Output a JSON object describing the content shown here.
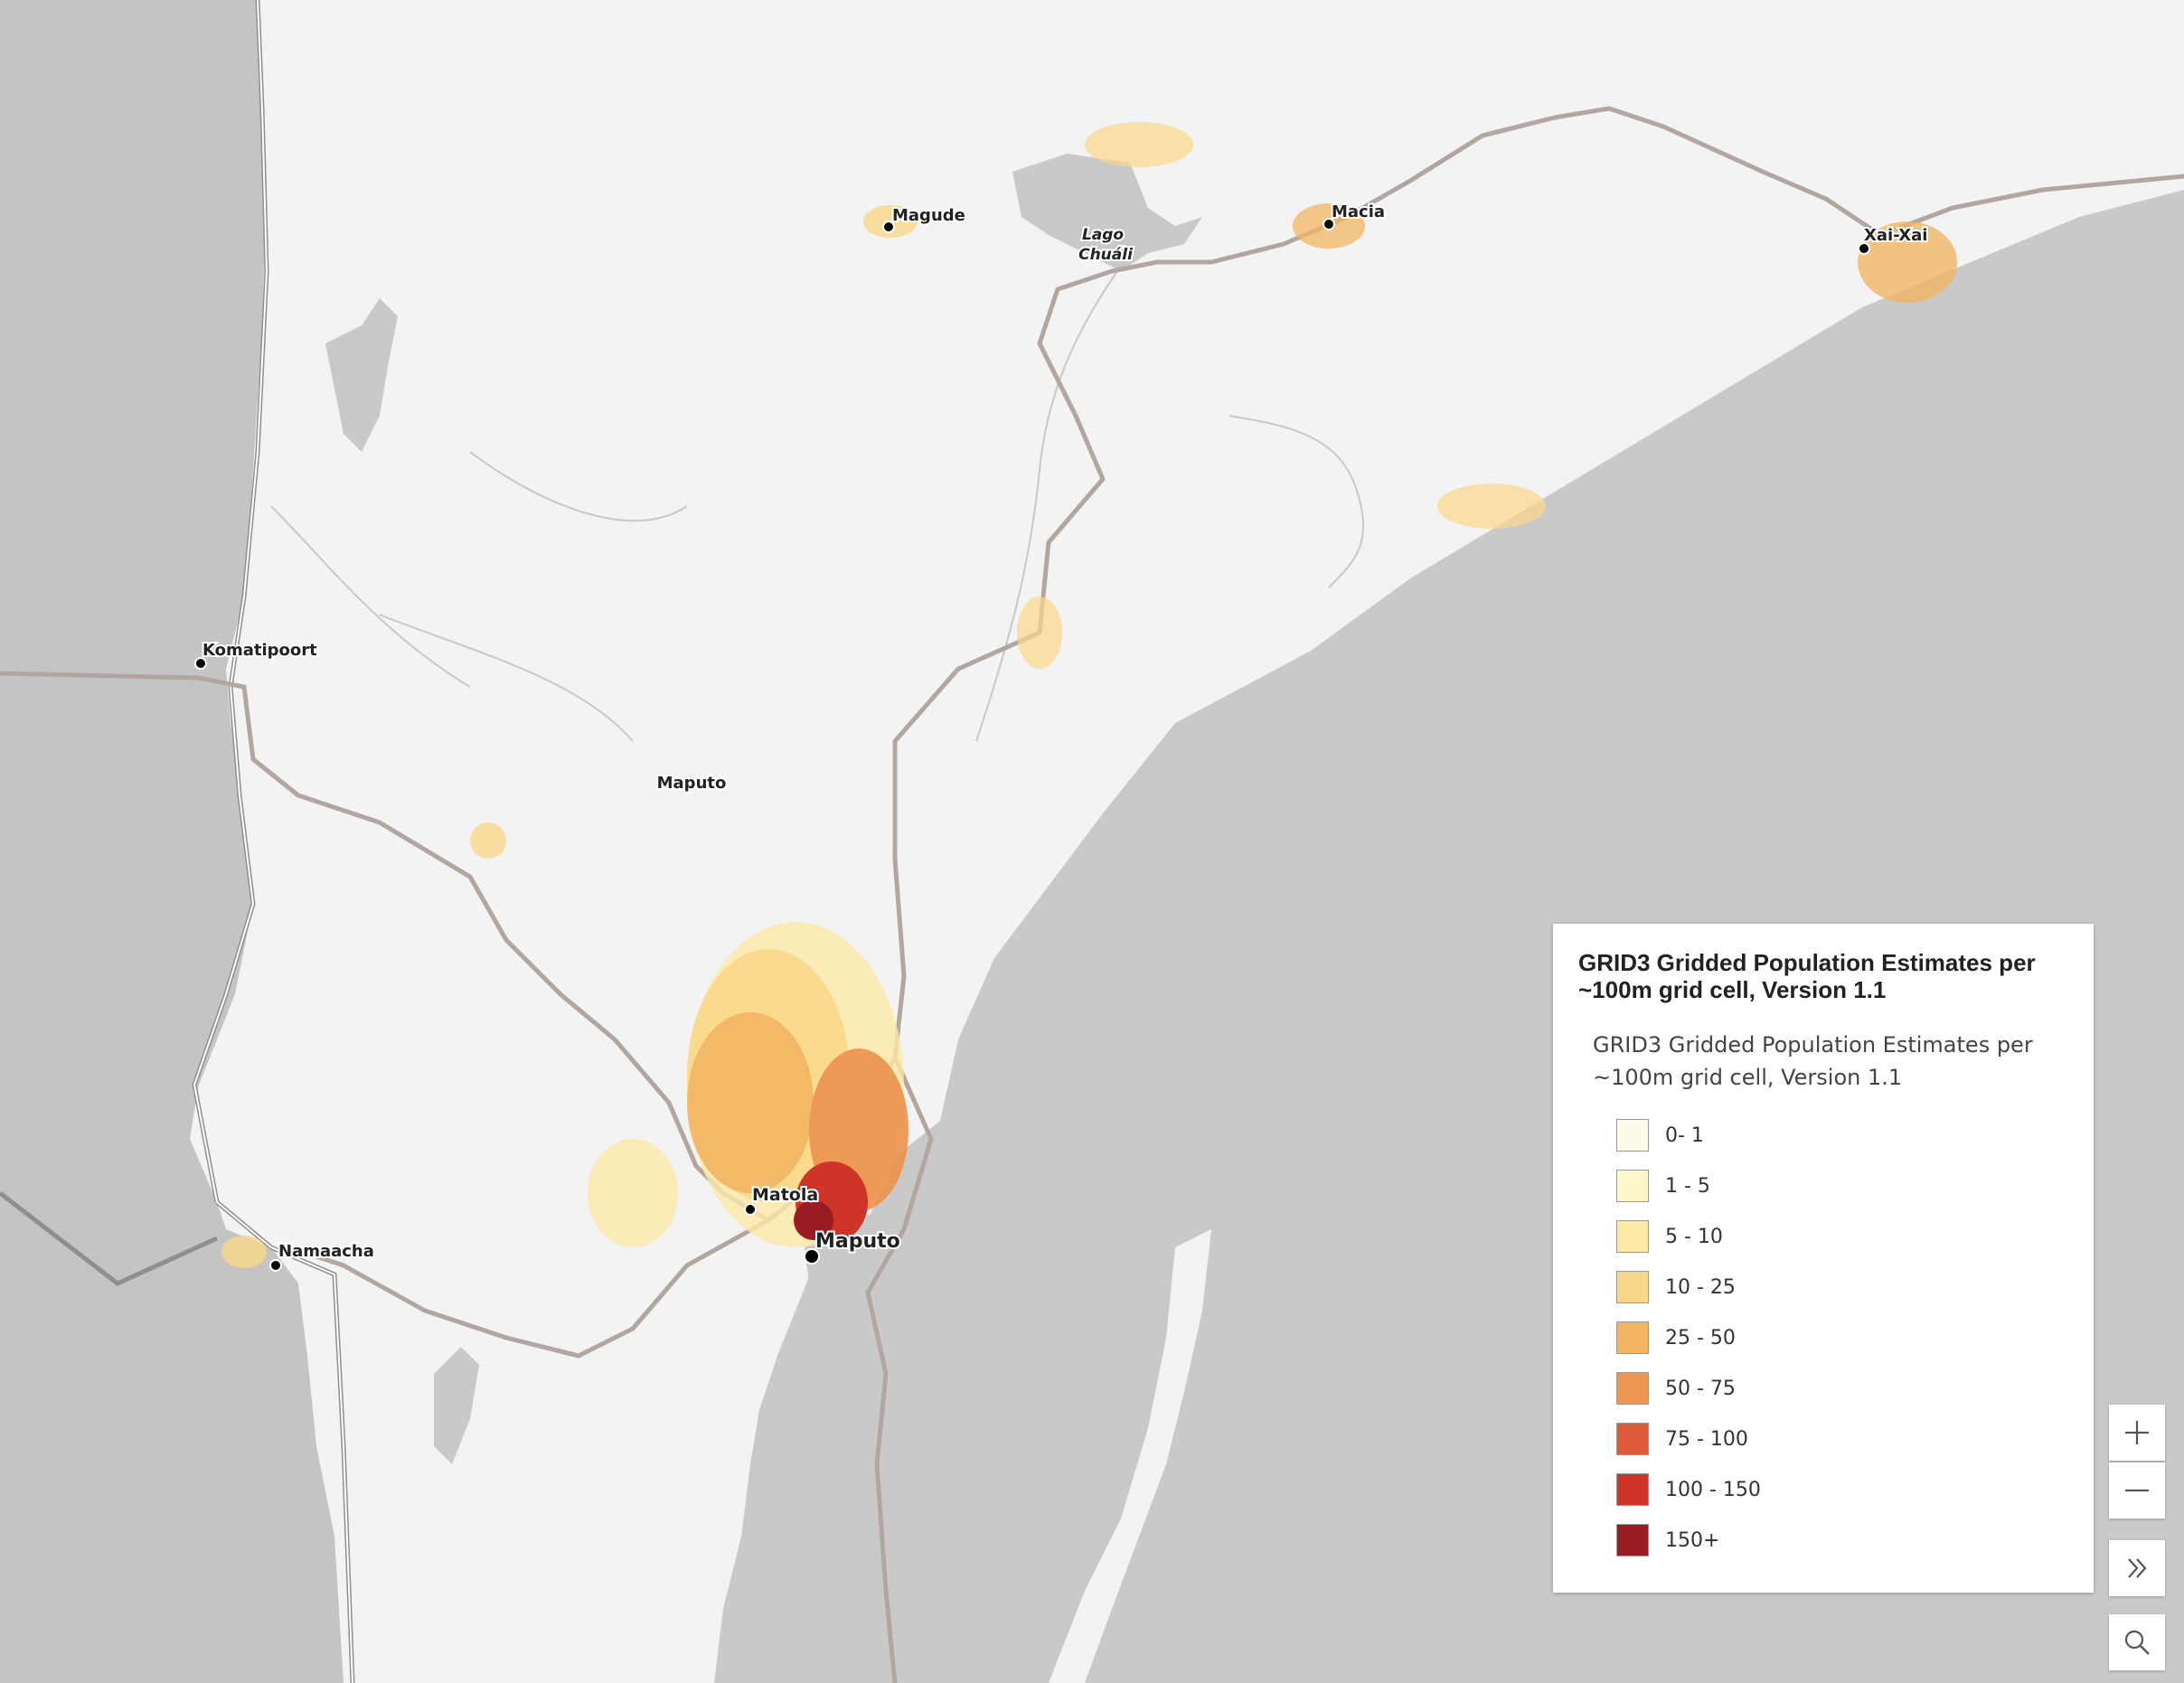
{
  "map": {
    "places": [
      {
        "name": "Magude",
        "key": "magude"
      },
      {
        "name": "Lago\nChuáli",
        "key": "lago"
      },
      {
        "name": "Macia",
        "key": "macia"
      },
      {
        "name": "Xai-Xai",
        "key": "xaixai"
      },
      {
        "name": "Komatipoort",
        "key": "komatipoort"
      },
      {
        "name": "Maputo",
        "key": "maputo-province"
      },
      {
        "name": "Matola",
        "key": "matola"
      },
      {
        "name": "Maputo",
        "key": "maputo-city"
      },
      {
        "name": "Namaacha",
        "key": "namaacha"
      }
    ]
  },
  "legend": {
    "title": "GRID3 Gridded Population Estimates per ~100m grid cell, Version 1.1",
    "subtitle": "GRID3 Gridded Population Estimates per ~100m grid cell, Version 1.1",
    "classes": [
      {
        "label": "0- 1",
        "color": "#fffbea"
      },
      {
        "label": "1 - 5",
        "color": "#fff6c9"
      },
      {
        "label": "5 - 10",
        "color": "#fde9a8"
      },
      {
        "label": "10 - 25",
        "color": "#f9d788"
      },
      {
        "label": "25 - 50",
        "color": "#f3b563"
      },
      {
        "label": "50 - 75",
        "color": "#ec9652"
      },
      {
        "label": "75 - 100",
        "color": "#e05a3a"
      },
      {
        "label": "100 - 150",
        "color": "#cf3428"
      },
      {
        "label": "150+",
        "color": "#9b1b24"
      }
    ]
  },
  "controls": {
    "zoom_in_icon": "plus-icon",
    "zoom_out_icon": "minus-icon",
    "expand_icon": "double-chevron-right-icon",
    "search_icon": "search-icon"
  },
  "colors": {
    "land": "#f3f3f3",
    "water": "#c9c9c9",
    "neighbour": "#c4c4c4",
    "road": "#b3a5a0",
    "border": "#9a9a9a"
  }
}
